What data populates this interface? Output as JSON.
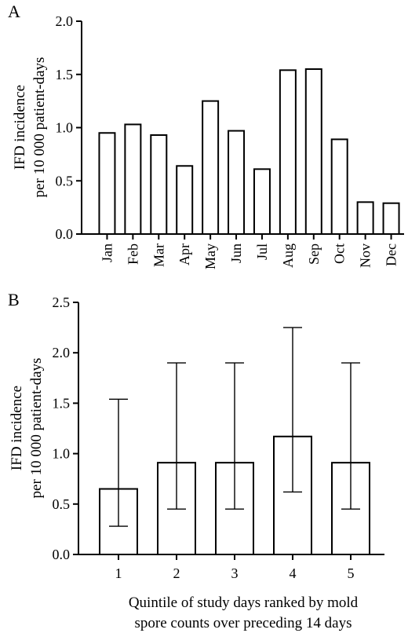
{
  "chart_data": [
    {
      "type": "bar",
      "panel": "A",
      "categories": [
        "Jan",
        "Feb",
        "Mar",
        "Apr",
        "May",
        "Jun",
        "Jul",
        "Aug",
        "Sep",
        "Oct",
        "Nov",
        "Dec"
      ],
      "values": [
        0.95,
        1.03,
        0.93,
        0.64,
        1.25,
        0.97,
        0.61,
        1.54,
        1.55,
        0.89,
        0.3,
        0.29
      ],
      "ylabel_line1": "IFD incidence",
      "ylabel_line2": "per 10 000 patient-days",
      "ylim": [
        0,
        2.0
      ],
      "yticks": [
        "0.0",
        "0.5",
        "1.0",
        "1.5",
        "2.0"
      ],
      "grid": false
    },
    {
      "type": "bar",
      "panel": "B",
      "categories": [
        "1",
        "2",
        "3",
        "4",
        "5"
      ],
      "values": [
        0.65,
        0.91,
        0.91,
        1.17,
        0.91
      ],
      "error_low": [
        0.28,
        0.45,
        0.45,
        0.62,
        0.45
      ],
      "error_high": [
        1.54,
        1.9,
        1.9,
        2.25,
        1.9
      ],
      "ylabel_line1": "IFD incidence",
      "ylabel_line2": "per 10 000 patient-days",
      "xlabel_line1": "Quintile of study days ranked by mold",
      "xlabel_line2": "spore counts over preceding 14 days",
      "ylim": [
        0,
        2.5
      ],
      "yticks": [
        "0.0",
        "0.5",
        "1.0",
        "1.5",
        "2.0",
        "2.5"
      ],
      "grid": false
    }
  ]
}
